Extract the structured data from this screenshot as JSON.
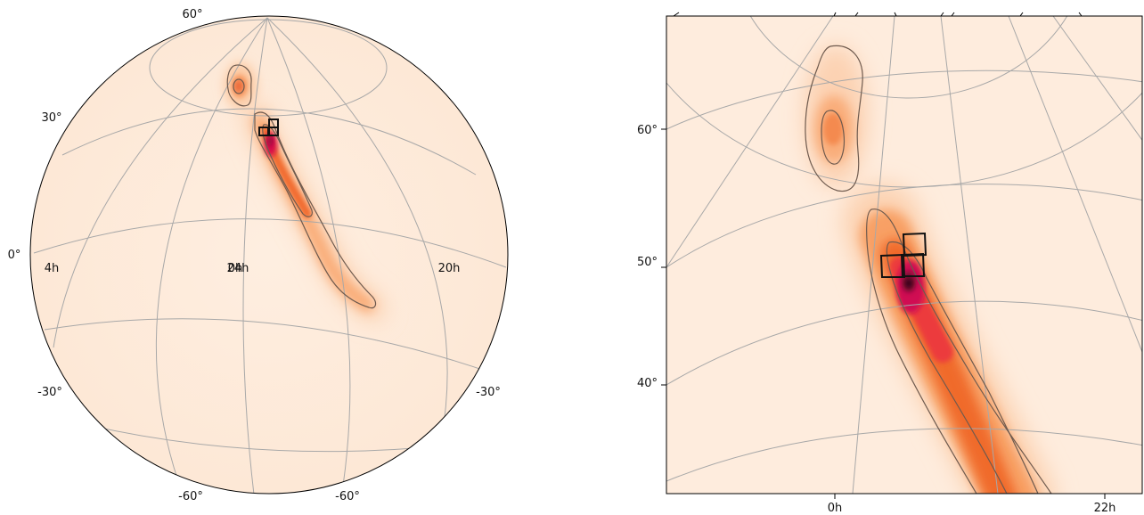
{
  "chart_data": [
    {
      "type": "heatmap",
      "projection": "globe",
      "colormap": "cylon",
      "tick_labels": {
        "latitude": [
          {
            "label": "60°"
          },
          {
            "label": "30°"
          },
          {
            "label": "0°"
          },
          {
            "label": "-30°"
          },
          {
            "label": "-30°"
          },
          {
            "label": "-60°"
          },
          {
            "label": "-60°"
          }
        ],
        "longitude": [
          {
            "label": "4h"
          },
          {
            "label": "24h"
          },
          {
            "label": "0h"
          },
          {
            "label": "20h"
          }
        ]
      },
      "probability_regions": [
        {
          "ra_h": 0.7,
          "dec_deg": 60,
          "contour_levels": 2
        },
        {
          "ra_h": 23.3,
          "dec_deg": 40,
          "contour_levels": 3,
          "peak": true
        }
      ],
      "observation_fields": 3,
      "grid": true,
      "legend": "none"
    },
    {
      "type": "heatmap",
      "projection": "zoomed gnomonic",
      "colormap": "cylon",
      "tick_labels": {
        "y": [
          {
            "label": "60°",
            "value": 60
          },
          {
            "label": "50°",
            "value": 50
          },
          {
            "label": "40°",
            "value": 40
          }
        ],
        "x": [
          {
            "label": "0h",
            "value": 0
          },
          {
            "label": "22h",
            "value": 22
          }
        ]
      },
      "probability_regions": [
        {
          "ra_h": 0.0,
          "dec_deg": 60,
          "contour_levels": 2
        },
        {
          "ra_h": 23.5,
          "dec_deg": 48,
          "contour_levels": 3,
          "peak": true
        }
      ],
      "observation_fields": 3,
      "grid": true,
      "legend": "none"
    }
  ]
}
